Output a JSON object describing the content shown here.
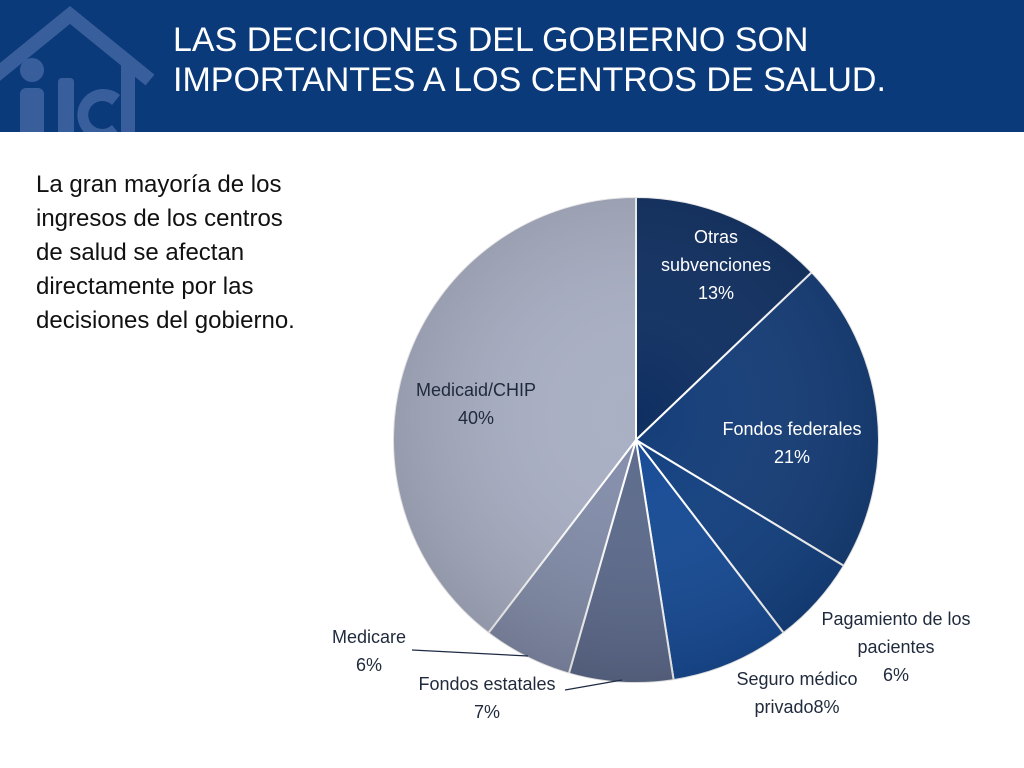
{
  "slide": {
    "title_line1": "LAS DECICIONES DEL GOBIERNO SON",
    "title_line2": "IMPORTANTES  A LOS CENTROS DE SALUD.",
    "body_lines": [
      "La gran mayoría de los",
      "ingresos de los centros",
      "de salud se afectan",
      "directamente por las",
      "decisiones del gobierno."
    ],
    "header_color": "#0b3a7a",
    "logo_icon": "house-logo-icon"
  },
  "chart_data": {
    "type": "pie",
    "start": "top",
    "direction": "clockwise",
    "legend": "none",
    "slices": [
      {
        "label_lines": [
          "Otras",
          "subvenciones"
        ],
        "value_text": "13%",
        "value": 13,
        "color": "#0e2e61"
      },
      {
        "label_lines": [
          "Fondos federales"
        ],
        "value_text": "21%",
        "value": 21,
        "color": "#133c78"
      },
      {
        "label_lines": [
          "Pagamiento de los",
          "pacientes"
        ],
        "value_text": "6%",
        "value": 6,
        "color": "#113f80"
      },
      {
        "label_lines": [
          "Seguro médico",
          "privado8%"
        ],
        "value_text": "",
        "value": 8,
        "color": "#154a96"
      },
      {
        "label_lines": [
          "Fondos estatales"
        ],
        "value_text": "7%",
        "value": 7,
        "color": "#5c6a8c"
      },
      {
        "label_lines": [
          "Medicare"
        ],
        "value_text": "6%",
        "value": 6,
        "color": "#838daa"
      },
      {
        "label_lines": [
          "Medicaid/CHIP"
        ],
        "value_text": "40%",
        "value": 40,
        "color": "#a9afc4"
      }
    ]
  }
}
